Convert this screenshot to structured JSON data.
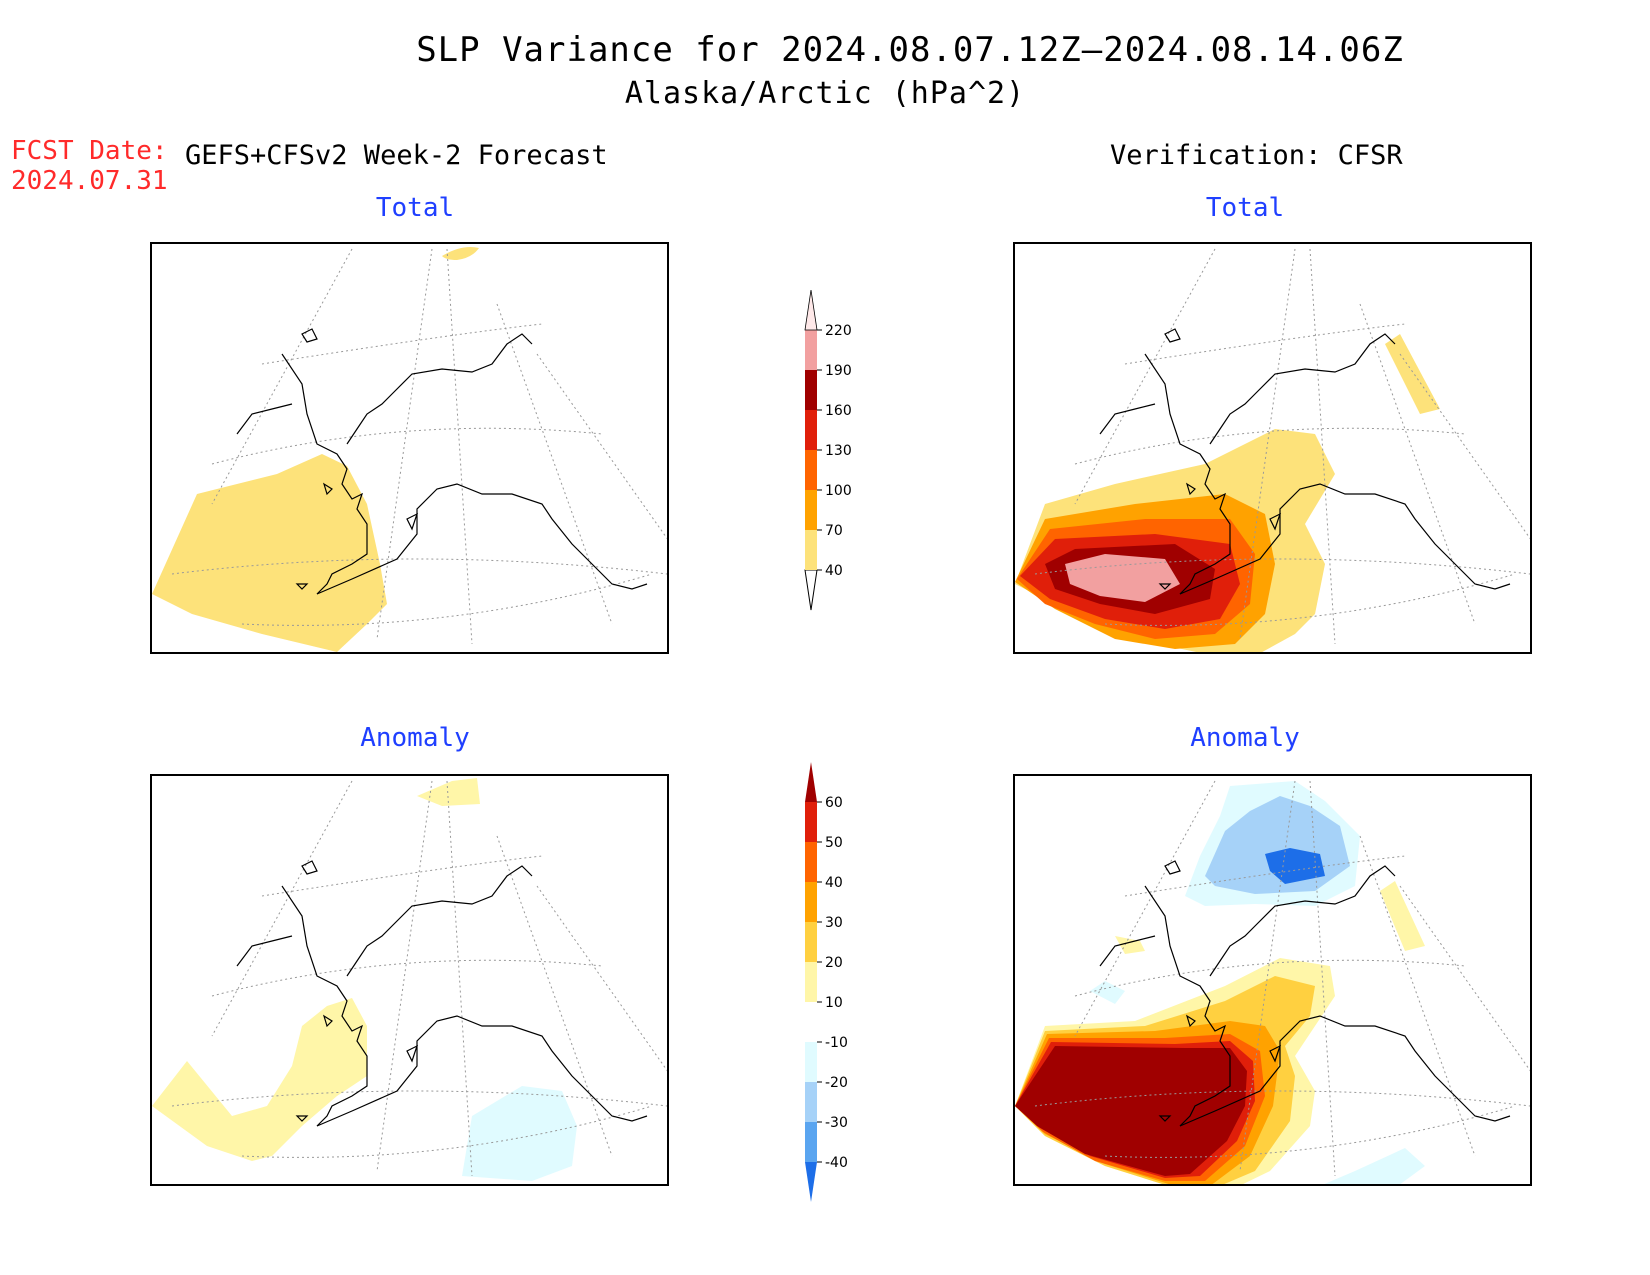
{
  "header": {
    "title": "SLP Variance for 2024.08.07.12Z–2024.08.14.06Z",
    "subtitle": "Alaska/Arctic (hPa^2)",
    "fcst_date_label": "FCST Date:",
    "fcst_date_value": "2024.07.31",
    "left_column": "GEFS+CFSv2 Week-2 Forecast",
    "right_column": "Verification: CFSR"
  },
  "panels": {
    "fc_total": "Total",
    "vf_total": "Total",
    "fc_anom": "Anomaly",
    "vf_anom": "Anomaly"
  },
  "colorbars": {
    "total": {
      "labels": [
        "40",
        "70",
        "100",
        "130",
        "160",
        "190",
        "220"
      ],
      "colors": [
        "#fde27a",
        "#ffa200",
        "#ff6400",
        "#e01f0a",
        "#a00000",
        "#f2a0a0",
        "#ffe9e9"
      ]
    },
    "anomaly": {
      "labels": [
        "-40",
        "-30",
        "-20",
        "-10",
        "10",
        "20",
        "30",
        "40",
        "50",
        "60"
      ],
      "colors": [
        "#1d6ee8",
        "#5aa5f0",
        "#a6d2f8",
        "#e0fbff",
        "#ffffff",
        "#fff6a8",
        "#ffd040",
        "#ffa200",
        "#ff6400",
        "#e01f0a",
        "#a00000"
      ]
    }
  }
}
